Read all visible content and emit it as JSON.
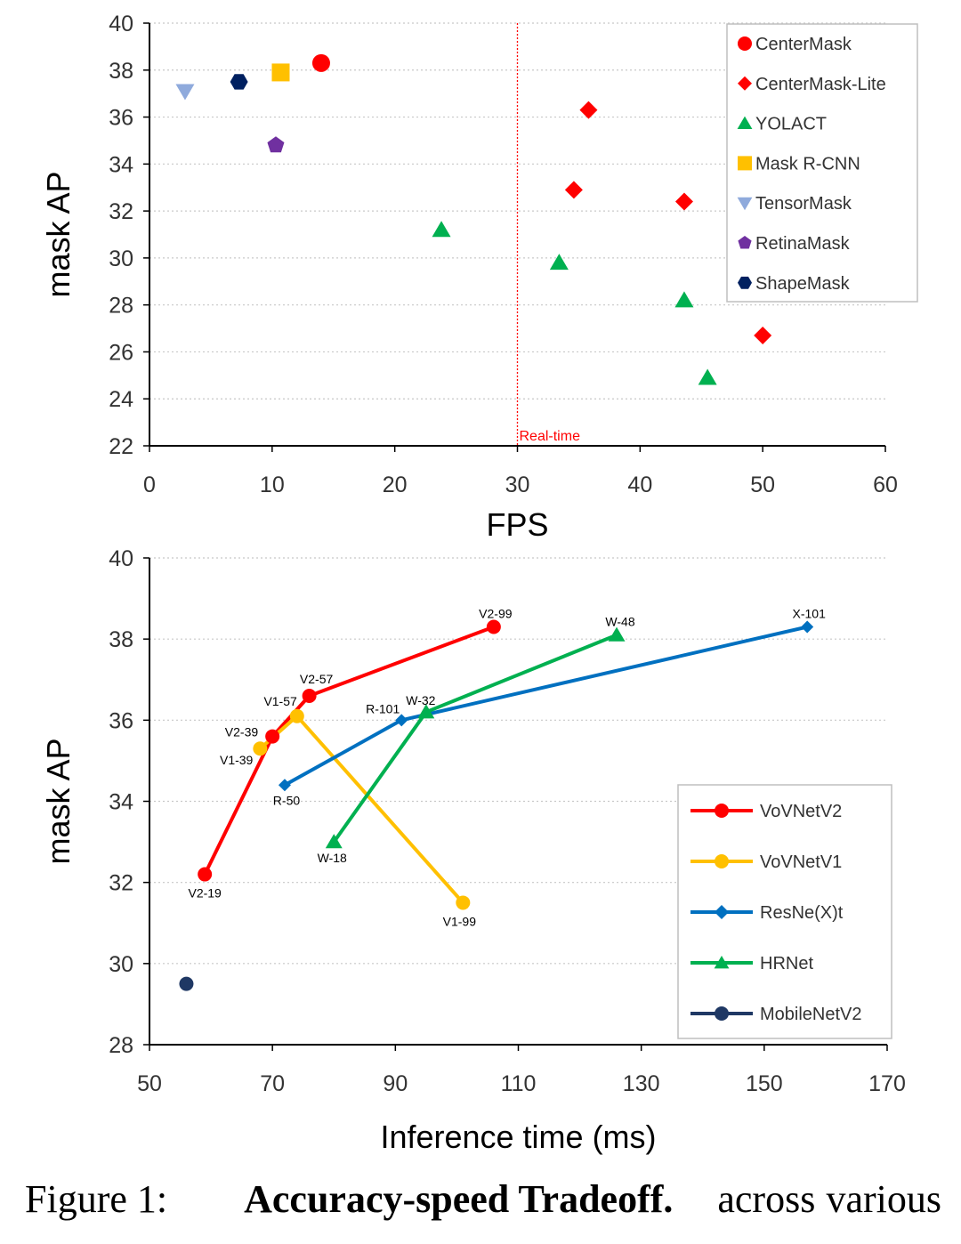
{
  "chart_data": [
    {
      "type": "scatter",
      "xlabel": "FPS",
      "ylabel": "mask AP",
      "xlim": [
        0,
        60
      ],
      "ylim": [
        22,
        40
      ],
      "xticks": [
        0,
        10,
        20,
        30,
        40,
        50,
        60
      ],
      "yticks": [
        22,
        24,
        26,
        28,
        30,
        32,
        34,
        36,
        38,
        40
      ],
      "grid": "horizontal dotted",
      "legend": "top-right",
      "annotations": [
        {
          "x": 30,
          "text": "Real-time",
          "color": "#ff0000"
        }
      ],
      "series": [
        {
          "name": "CenterMask",
          "marker": "circle",
          "color": "#ff0000",
          "points": [
            [
              14.0,
              38.3
            ]
          ]
        },
        {
          "name": "CenterMask-Lite",
          "marker": "diamond",
          "color": "#ff0000",
          "points": [
            [
              35.8,
              36.3
            ],
            [
              34.6,
              32.9
            ],
            [
              43.6,
              32.4
            ],
            [
              50.0,
              26.7
            ]
          ]
        },
        {
          "name": "YOLACT",
          "marker": "triangle",
          "color": "#00b050",
          "points": [
            [
              23.8,
              31.2
            ],
            [
              33.4,
              29.8
            ],
            [
              43.6,
              28.2
            ],
            [
              45.5,
              24.9
            ]
          ]
        },
        {
          "name": "Mask R-CNN",
          "marker": "square",
          "color": "#ffc000",
          "points": [
            [
              10.7,
              37.9
            ]
          ]
        },
        {
          "name": "TensorMask",
          "marker": "triangle-down",
          "color": "#8faadc",
          "points": [
            [
              2.9,
              37.1
            ]
          ]
        },
        {
          "name": "RetinaMask",
          "marker": "pentagon",
          "color": "#7030a0",
          "points": [
            [
              10.3,
              34.8
            ]
          ]
        },
        {
          "name": "ShapeMask",
          "marker": "hexagon",
          "color": "#002060",
          "points": [
            [
              7.3,
              37.5
            ]
          ]
        }
      ]
    },
    {
      "type": "line",
      "xlabel": "Inference time (ms)",
      "ylabel": "mask AP",
      "xlim": [
        50,
        170
      ],
      "ylim": [
        28,
        40
      ],
      "xticks": [
        50,
        70,
        90,
        110,
        130,
        150,
        170
      ],
      "yticks": [
        28,
        30,
        32,
        34,
        36,
        38,
        40
      ],
      "grid": "horizontal dotted",
      "legend": "bottom-right",
      "series": [
        {
          "name": "VoVNetV2",
          "marker": "circle",
          "color": "#ff0000",
          "points": [
            [
              59,
              32.2,
              "V2-19"
            ],
            [
              70,
              35.6,
              "V2-39"
            ],
            [
              76,
              36.6,
              "V2-57"
            ],
            [
              106,
              38.3,
              "V2-99"
            ]
          ]
        },
        {
          "name": "VoVNetV1",
          "marker": "circle",
          "color": "#ffc000",
          "points": [
            [
              68,
              35.3,
              "V1-39"
            ],
            [
              74,
              36.1,
              "V1-57"
            ],
            [
              101,
              31.5,
              "V1-99"
            ]
          ]
        },
        {
          "name": "ResNe(X)t",
          "marker": "diamond",
          "color": "#0070c0",
          "points": [
            [
              72,
              34.4,
              "R-50"
            ],
            [
              91,
              36.0,
              "R-101"
            ],
            [
              157,
              38.3,
              "X-101"
            ]
          ]
        },
        {
          "name": "HRNet",
          "marker": "triangle",
          "color": "#00b050",
          "points": [
            [
              80,
              33.0,
              "W-18"
            ],
            [
              95,
              36.2,
              "W-32"
            ],
            [
              126,
              38.1,
              "W-48"
            ]
          ]
        },
        {
          "name": "MobileNetV2",
          "marker": "circle",
          "color": "#1f3864",
          "points": [
            [
              56,
              29.5,
              ""
            ]
          ]
        }
      ]
    }
  ],
  "caption": {
    "number": "Figure 1:",
    "bold": "Accuracy-speed Tradeoff.",
    "rest": "across various"
  }
}
